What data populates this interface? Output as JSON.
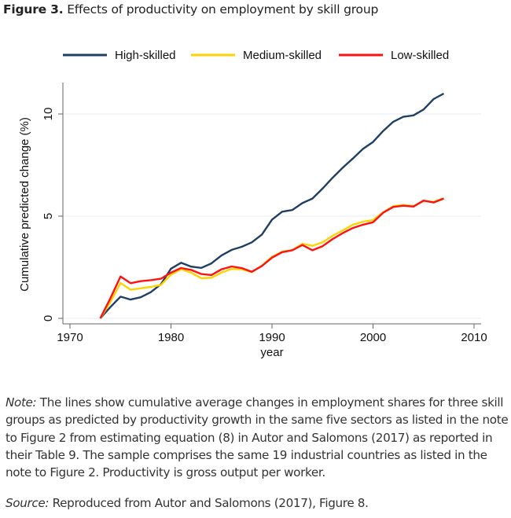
{
  "figure": {
    "label": "Figure 3.",
    "title": "Effects of productivity on employment by skill group"
  },
  "chart_data": {
    "type": "line",
    "title": "Effects of productivity on employment by skill group",
    "xlabel": "year",
    "ylabel": "Cumulative predicted change (%)",
    "xlim": [
      1970,
      2010
    ],
    "ylim": [
      0,
      11.5
    ],
    "xticks": [
      1970,
      1980,
      1990,
      2000,
      2010
    ],
    "yticks": [
      0,
      5,
      10
    ],
    "grid": "horizontal",
    "legend_position": "top",
    "x": [
      1973,
      1974,
      1975,
      1976,
      1977,
      1978,
      1979,
      1980,
      1981,
      1982,
      1983,
      1984,
      1985,
      1986,
      1987,
      1988,
      1989,
      1990,
      1991,
      1992,
      1993,
      1994,
      1995,
      1996,
      1997,
      1998,
      1999,
      2000,
      2001,
      2002,
      2003,
      2004,
      2005,
      2006,
      2007
    ],
    "series": [
      {
        "name": "High-skilled",
        "color": "#1f3f63",
        "values": [
          0,
          0.55,
          1.06,
          0.92,
          1.03,
          1.28,
          1.67,
          2.43,
          2.72,
          2.53,
          2.47,
          2.69,
          3.08,
          3.35,
          3.5,
          3.72,
          4.1,
          4.83,
          5.22,
          5.3,
          5.64,
          5.86,
          6.35,
          6.88,
          7.37,
          7.82,
          8.29,
          8.63,
          9.17,
          9.62,
          9.86,
          9.93,
          10.22,
          10.73,
          11.0
        ]
      },
      {
        "name": "Medium-skilled",
        "color": "#ffd200",
        "values": [
          0,
          0.8,
          1.73,
          1.4,
          1.47,
          1.54,
          1.63,
          2.14,
          2.4,
          2.24,
          1.96,
          1.99,
          2.24,
          2.42,
          2.4,
          2.26,
          2.58,
          3.01,
          3.26,
          3.34,
          3.65,
          3.55,
          3.72,
          4.04,
          4.3,
          4.58,
          4.73,
          4.81,
          5.19,
          5.49,
          5.55,
          5.49,
          5.74,
          5.7,
          5.88
        ]
      },
      {
        "name": "Low-skilled",
        "color": "#ff1111",
        "values": [
          0,
          0.98,
          2.05,
          1.72,
          1.82,
          1.87,
          1.94,
          2.24,
          2.46,
          2.37,
          2.17,
          2.12,
          2.4,
          2.54,
          2.46,
          2.28,
          2.56,
          2.97,
          3.24,
          3.33,
          3.59,
          3.33,
          3.53,
          3.88,
          4.17,
          4.42,
          4.58,
          4.7,
          5.17,
          5.45,
          5.51,
          5.47,
          5.76,
          5.67,
          5.86
        ]
      }
    ]
  },
  "notes": {
    "note_label": "Note:",
    "note_text": " The lines show cumulative average changes in employment shares for three skill groups as predicted by productivity growth in the same five sectors as listed in the note to Figure 2 from estimating equation (8) in Autor and Salomons (2017) as reported in their Table 9. The sample comprises the same 19 industrial countries as listed in the note to Figure 2. Productivity is gross output per worker.",
    "source_label": "Source:",
    "source_text": " Reproduced from Autor and Salomons (2017), Figure 8."
  }
}
